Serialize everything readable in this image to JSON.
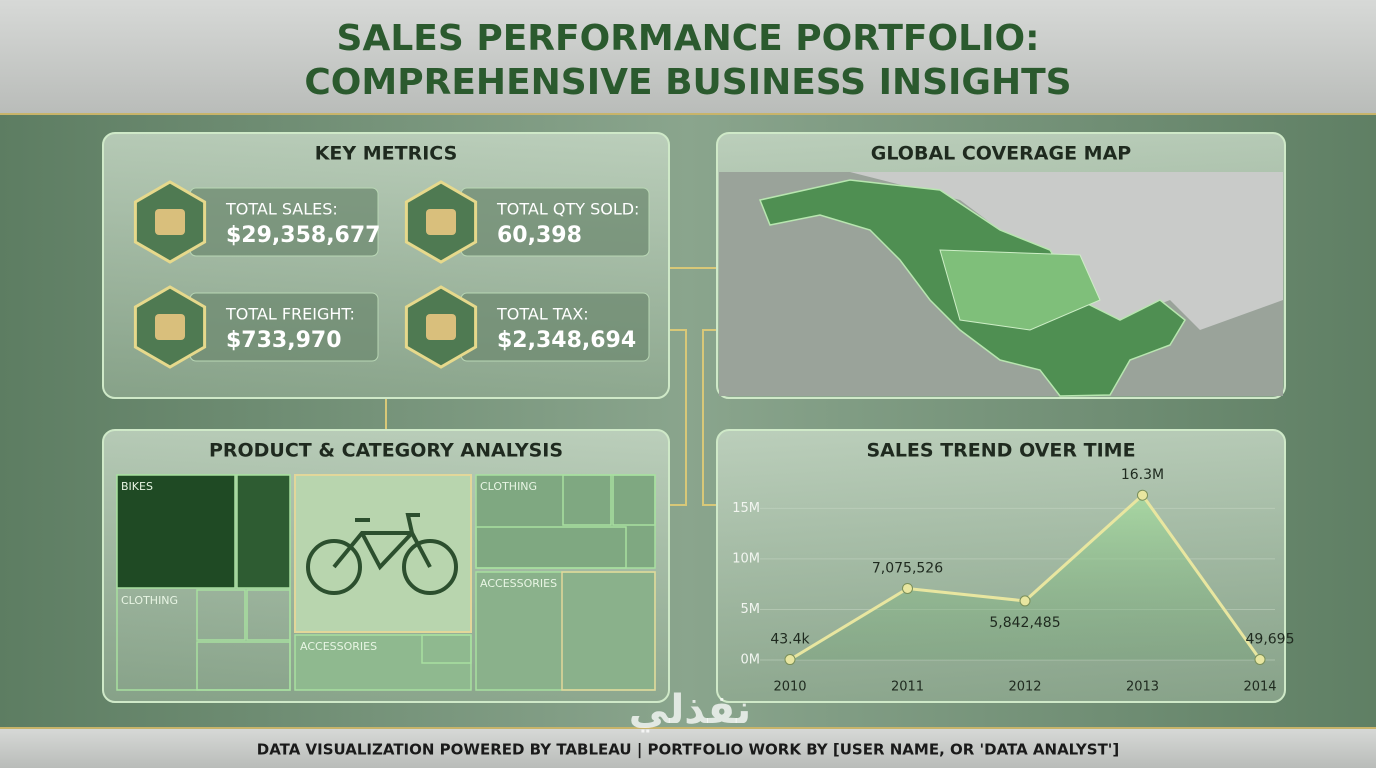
{
  "header": {
    "title_lines": [
      "SALES PERFORMANCE PORTFOLIO:",
      "COMPREHENSIVE BUSINESS INSIGHTS"
    ]
  },
  "key_metrics": {
    "title": "KEY METRICS",
    "items": [
      {
        "label": "TOTAL SALES:",
        "value": "$29,358,677"
      },
      {
        "label": "TOTAL QTY SOLD:",
        "value": "60,398"
      },
      {
        "label": "TOTAL FREIGHT:",
        "value": "$733,970"
      },
      {
        "label": "TOTAL TAX:",
        "value": "$2,348,694"
      }
    ]
  },
  "map": {
    "title": "GLOBAL COVERAGE MAP"
  },
  "treemap": {
    "title": "PRODUCT & CATEGORY ANALYSIS",
    "labels": [
      "BIKES",
      "CLOTHING",
      "ACCESSORIES",
      "CLOTHING",
      "ACCESSORIES"
    ]
  },
  "chart_data": {
    "type": "line",
    "title": "SALES TREND OVER TIME",
    "categories": [
      "2010",
      "2011",
      "2012",
      "2013",
      "2014"
    ],
    "values": [
      43400,
      7075526,
      5842485,
      16300000,
      49695
    ],
    "value_labels": [
      "43.4k",
      "7,075,526",
      "5,842,485",
      "16.3M",
      "49,695"
    ],
    "color": "#e8e6a0",
    "ylim": [
      0,
      18000000
    ],
    "yticks": [
      {
        "value": 0,
        "label": "0M"
      },
      {
        "value": 5000000,
        "label": "5M"
      },
      {
        "value": 10000000,
        "label": "10M"
      },
      {
        "value": 15000000,
        "label": "15M"
      }
    ]
  },
  "footer": {
    "text": "DATA VISUALIZATION POWERED BY TABLEAU | PORTFOLIO WORK BY [USER NAME, OR 'DATA ANALYST']"
  },
  "watermark": "نفذلي"
}
